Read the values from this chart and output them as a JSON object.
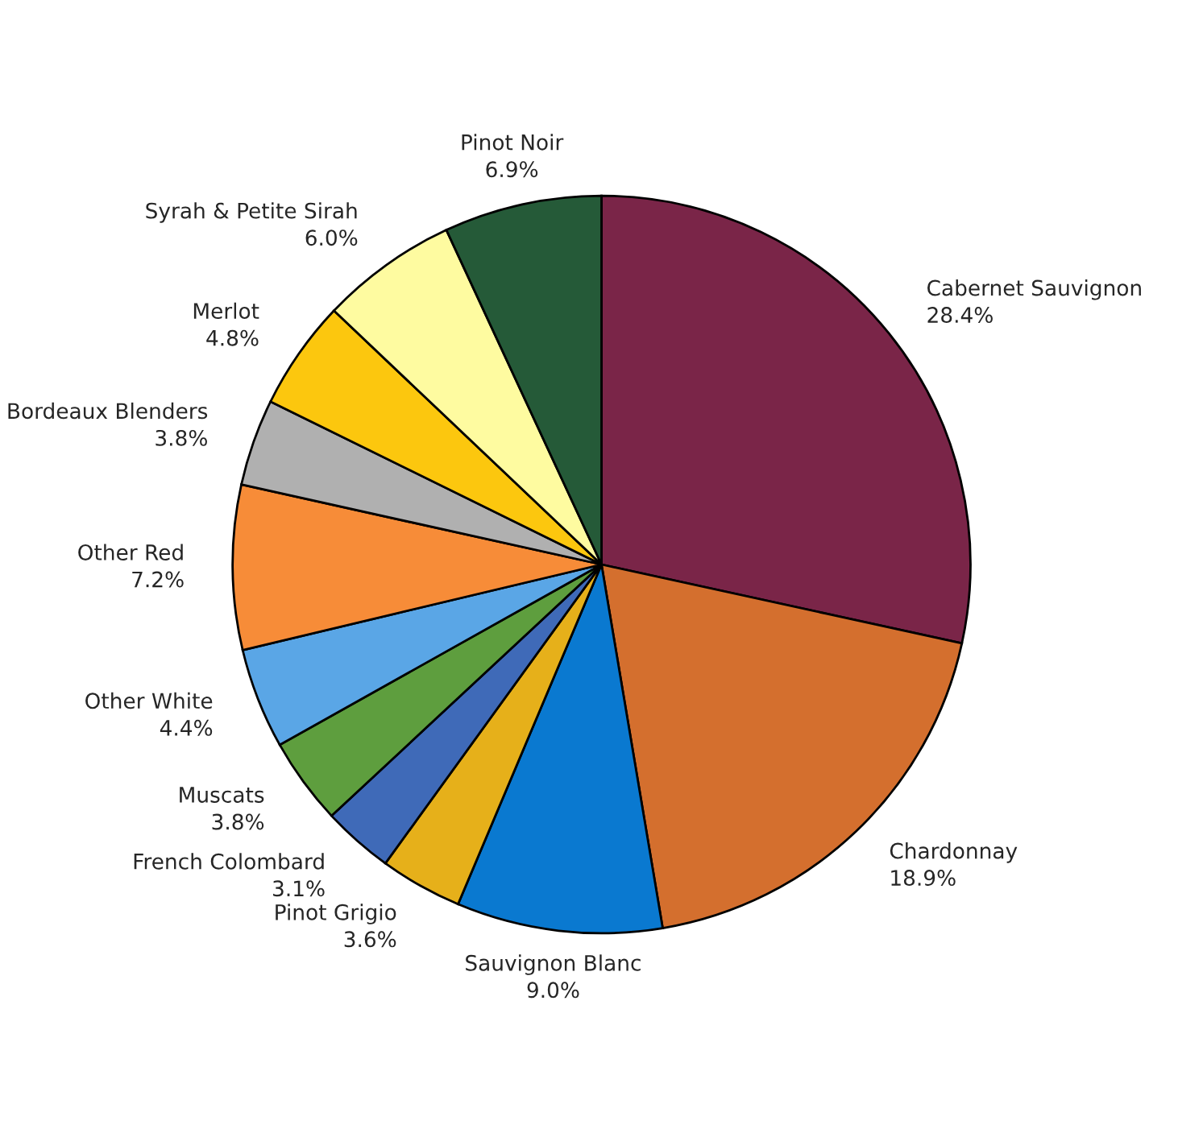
{
  "chart_data": {
    "type": "pie",
    "categories": [
      "Cabernet Sauvignon",
      "Chardonnay",
      "Sauvignon Blanc",
      "Pinot Grigio",
      "French Colombard",
      "Muscats",
      "Other White",
      "Other Red",
      "Bordeaux Blenders",
      "Merlot",
      "Syrah & Petite Sirah",
      "Pinot Noir"
    ],
    "values": [
      28.4,
      18.9,
      9.0,
      3.6,
      3.1,
      3.8,
      4.4,
      7.2,
      3.8,
      4.8,
      6.0,
      6.9
    ],
    "value_labels": [
      "28.4%",
      "18.9%",
      "9.0%",
      "3.6%",
      "3.1%",
      "3.8%",
      "4.4%",
      "7.2%",
      "3.8%",
      "4.8%",
      "6.0%",
      "6.9%"
    ],
    "colors": [
      "#7a2548",
      "#d46f2e",
      "#0a79d0",
      "#e6b01a",
      "#3f6ab8",
      "#5e9e3e",
      "#5aa6e6",
      "#f78c38",
      "#b0b0b0",
      "#fcc70e",
      "#fefba0",
      "#255a38"
    ]
  }
}
